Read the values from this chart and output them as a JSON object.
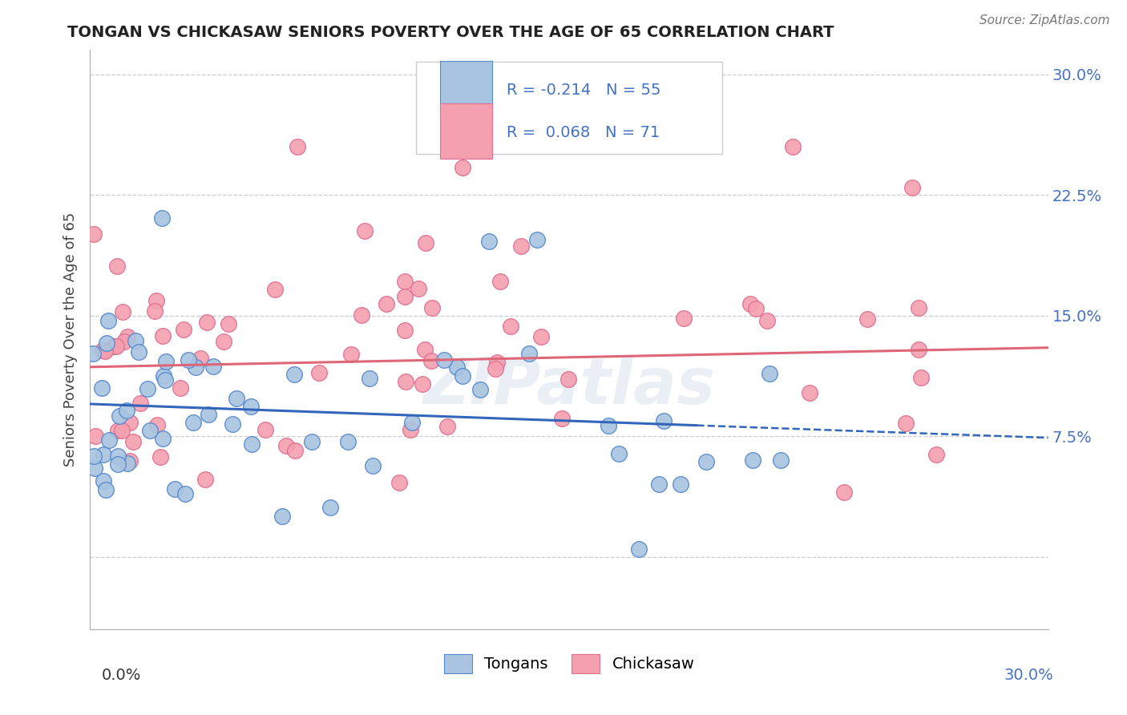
{
  "title": "TONGAN VS CHICKASAW SENIORS POVERTY OVER THE AGE OF 65 CORRELATION CHART",
  "source": "Source: ZipAtlas.com",
  "ylabel": "Seniors Poverty Over the Age of 65",
  "y_tick_vals": [
    0.0,
    0.075,
    0.15,
    0.225,
    0.3
  ],
  "y_tick_labels": [
    "",
    "7.5%",
    "15.0%",
    "22.5%",
    "30.0%"
  ],
  "xlim": [
    0.0,
    0.3
  ],
  "ylim": [
    -0.045,
    0.315
  ],
  "legend_text_row1": "R = -0.214   N = 55",
  "legend_text_row2": "R =  0.068   N = 71",
  "blue_color": "#a8c4e0",
  "pink_color": "#f4a0b0",
  "blue_edge_color": "#5588cc",
  "pink_edge_color": "#e07090",
  "blue_line_color": "#3366bb",
  "pink_line_color": "#dd6677",
  "legend_text_color": "#4472c4",
  "right_axis_color": "#4472c4",
  "watermark": "ZIPatlas",
  "grid_color": "#cccccc",
  "background_color": "#ffffff",
  "title_color": "#222222",
  "source_color": "#777777",
  "ylabel_color": "#444444"
}
